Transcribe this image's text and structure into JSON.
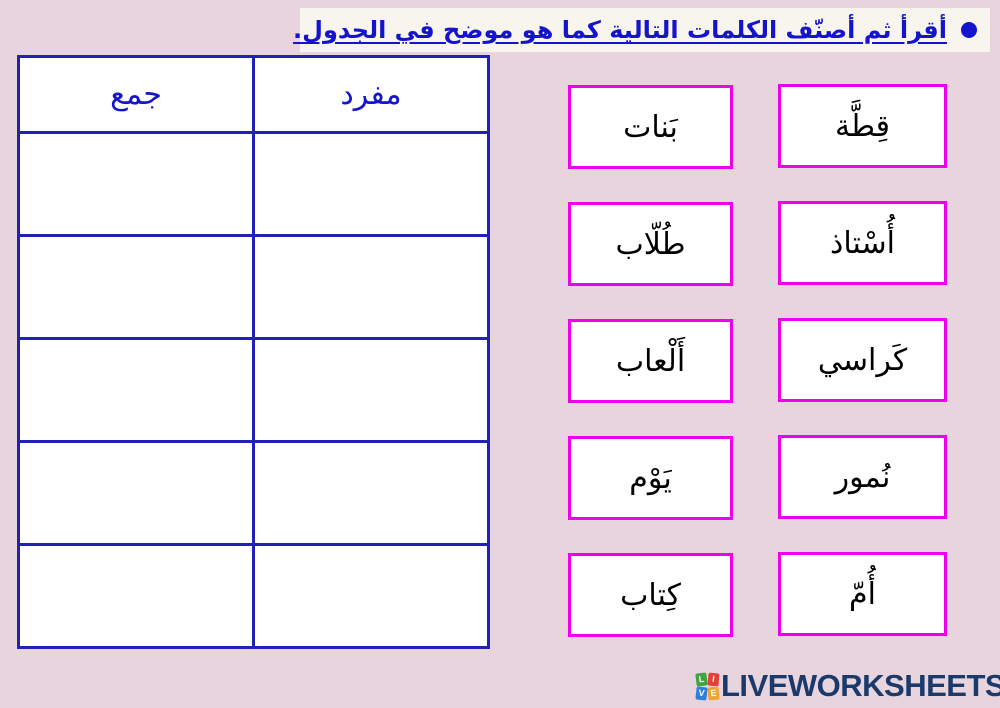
{
  "colors": {
    "page_background": "#E7D4DD",
    "title_strip_background": "#F8F4EE",
    "title_text": "#1414CC",
    "table_border": "#2121B5",
    "card_border": "#EE00EE",
    "logo_text": "#1B3A6B",
    "logo_icon": [
      "#3DA53D",
      "#E4403A",
      "#2F80DC",
      "#F0A330"
    ]
  },
  "title": {
    "text": "أقرأ ثم أصنّف الكلمات التالية كما هو موضح في الجدول."
  },
  "table": {
    "header_left": "جمع",
    "header_right": "مفرد",
    "empty_row_count": 5
  },
  "cards": {
    "left_column": [
      "بَنات",
      "طُلّاب",
      "أَلْعاب",
      "يَوْم",
      "كِتاب"
    ],
    "right_column": [
      "قِطَّة",
      "أُسْتاذ",
      "كَراسي",
      "نُمور",
      "أُمّ"
    ]
  },
  "logo": {
    "text": "LIVEWORKSHEETS",
    "icon_letters": [
      "L",
      "I",
      "V",
      "E"
    ]
  }
}
